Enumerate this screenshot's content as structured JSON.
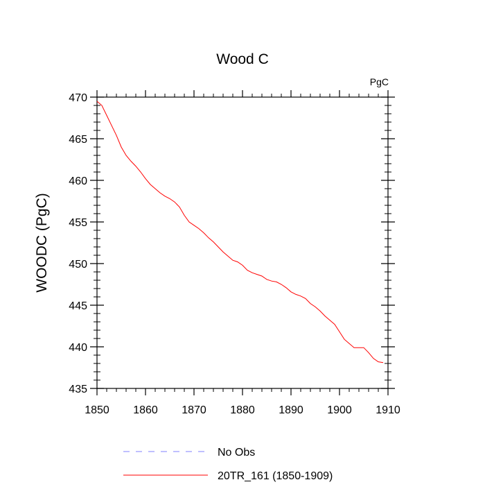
{
  "chart_data": {
    "type": "line",
    "title": "Wood C",
    "units_label": "PgC",
    "xlabel": "",
    "ylabel": "WOODC  (PgC)",
    "xlim": [
      1850,
      1910
    ],
    "ylim": [
      435,
      470
    ],
    "x_ticks": [
      1850,
      1860,
      1870,
      1880,
      1890,
      1900,
      1910
    ],
    "y_ticks": [
      435,
      440,
      445,
      450,
      455,
      460,
      465,
      470
    ],
    "grid": false,
    "legend_position": "bottom",
    "colors": {
      "model": "#ff0000",
      "obs": "#8080ff"
    },
    "series": [
      {
        "name": "No Obs",
        "style": "dashed",
        "x": [],
        "y": []
      },
      {
        "name": "20TR_161 (1850-1909)",
        "style": "solid",
        "x": [
          1850,
          1851,
          1852,
          1853,
          1854,
          1855,
          1856,
          1857,
          1858,
          1859,
          1860,
          1861,
          1862,
          1863,
          1864,
          1865,
          1866,
          1867,
          1868,
          1869,
          1870,
          1871,
          1872,
          1873,
          1874,
          1875,
          1876,
          1877,
          1878,
          1879,
          1880,
          1881,
          1882,
          1883,
          1884,
          1885,
          1886,
          1887,
          1888,
          1889,
          1890,
          1891,
          1892,
          1893,
          1894,
          1895,
          1896,
          1897,
          1898,
          1899,
          1900,
          1901,
          1902,
          1903,
          1904,
          1905,
          1906,
          1907,
          1908,
          1909
        ],
        "y": [
          469.5,
          469.0,
          467.8,
          466.6,
          465.4,
          464.0,
          463.0,
          462.3,
          461.7,
          461.0,
          460.2,
          459.5,
          459.0,
          458.5,
          458.1,
          457.8,
          457.4,
          456.8,
          455.8,
          455.0,
          454.6,
          454.2,
          453.7,
          453.1,
          452.6,
          452.0,
          451.4,
          450.9,
          450.4,
          450.2,
          449.8,
          449.2,
          448.9,
          448.7,
          448.5,
          448.1,
          447.9,
          447.8,
          447.5,
          447.1,
          446.6,
          446.3,
          446.1,
          445.8,
          445.2,
          444.8,
          444.3,
          443.7,
          443.2,
          442.7,
          441.8,
          440.9,
          440.4,
          439.9,
          439.9,
          439.9,
          439.3,
          438.6,
          438.2,
          438.1
        ]
      }
    ]
  }
}
